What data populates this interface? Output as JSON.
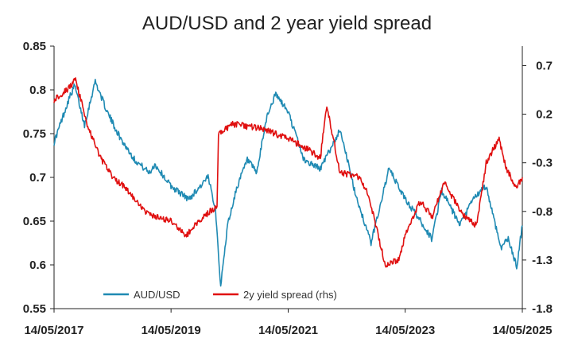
{
  "chart_data": {
    "type": "line",
    "title": "AUD/USD and 2 year yield spread",
    "xlabel": "",
    "ylabel": "",
    "x_ticks": [
      "14/05/2017",
      "14/05/2019",
      "14/05/2021",
      "14/05/2023",
      "14/05/2025"
    ],
    "x_range": [
      "2017-05-14",
      "2025-05-14"
    ],
    "y_left": {
      "min": 0.55,
      "max": 0.85,
      "ticks": [
        "0.85",
        "0.8",
        "0.75",
        "0.7",
        "0.65",
        "0.6",
        "0.55"
      ]
    },
    "y_right": {
      "min": -1.8,
      "max": 0.9,
      "ticks": [
        "0.7",
        "0.2",
        "-0.3",
        "-0.8",
        "-1.3",
        "-1.8"
      ]
    },
    "grid": false,
    "legend_position": "bottom",
    "series": [
      {
        "name": "AUD/USD",
        "axis": "left",
        "color": "#1f8ab3",
        "points": [
          [
            "2017-05-14",
            0.74
          ],
          [
            "2017-08-15",
            0.79
          ],
          [
            "2017-09-20",
            0.805
          ],
          [
            "2017-11-20",
            0.76
          ],
          [
            "2018-01-26",
            0.81
          ],
          [
            "2018-04-10",
            0.775
          ],
          [
            "2018-07-01",
            0.745
          ],
          [
            "2018-09-30",
            0.72
          ],
          [
            "2018-12-31",
            0.705
          ],
          [
            "2019-02-01",
            0.715
          ],
          [
            "2019-05-14",
            0.69
          ],
          [
            "2019-09-01",
            0.675
          ],
          [
            "2019-12-31",
            0.7
          ],
          [
            "2020-02-15",
            0.665
          ],
          [
            "2020-03-19",
            0.575
          ],
          [
            "2020-04-30",
            0.645
          ],
          [
            "2020-06-30",
            0.69
          ],
          [
            "2020-09-01",
            0.72
          ],
          [
            "2020-10-30",
            0.705
          ],
          [
            "2021-01-01",
            0.77
          ],
          [
            "2021-02-25",
            0.795
          ],
          [
            "2021-05-14",
            0.775
          ],
          [
            "2021-08-20",
            0.72
          ],
          [
            "2021-12-01",
            0.71
          ],
          [
            "2022-04-05",
            0.755
          ],
          [
            "2022-07-01",
            0.685
          ],
          [
            "2022-10-13",
            0.625
          ],
          [
            "2023-02-02",
            0.71
          ],
          [
            "2023-05-14",
            0.675
          ],
          [
            "2023-08-01",
            0.655
          ],
          [
            "2023-10-26",
            0.63
          ],
          [
            "2023-12-28",
            0.685
          ],
          [
            "2024-04-20",
            0.645
          ],
          [
            "2024-07-10",
            0.675
          ],
          [
            "2024-09-30",
            0.69
          ],
          [
            "2024-12-31",
            0.62
          ],
          [
            "2025-02-15",
            0.63
          ],
          [
            "2025-04-09",
            0.598
          ],
          [
            "2025-05-14",
            0.645
          ]
        ]
      },
      {
        "name": "2y yield spread (rhs)",
        "axis": "right",
        "color": "#e01010",
        "points": [
          [
            "2017-05-14",
            0.35
          ],
          [
            "2017-08-01",
            0.45
          ],
          [
            "2017-09-25",
            0.55
          ],
          [
            "2017-12-15",
            0.05
          ],
          [
            "2018-03-01",
            -0.25
          ],
          [
            "2018-05-15",
            -0.45
          ],
          [
            "2018-08-01",
            -0.55
          ],
          [
            "2018-11-01",
            -0.75
          ],
          [
            "2019-01-15",
            -0.85
          ],
          [
            "2019-05-14",
            -0.9
          ],
          [
            "2019-08-15",
            -1.05
          ],
          [
            "2019-12-01",
            -0.85
          ],
          [
            "2020-02-25",
            -0.75
          ],
          [
            "2020-03-05",
            0.0
          ],
          [
            "2020-06-01",
            0.1
          ],
          [
            "2020-12-01",
            0.05
          ],
          [
            "2021-05-14",
            -0.05
          ],
          [
            "2021-09-01",
            -0.15
          ],
          [
            "2021-12-01",
            -0.25
          ],
          [
            "2022-01-10",
            0.3
          ],
          [
            "2022-04-01",
            -0.4
          ],
          [
            "2022-08-01",
            -0.45
          ],
          [
            "2022-10-01",
            -0.65
          ],
          [
            "2023-01-10",
            -1.35
          ],
          [
            "2023-04-01",
            -1.3
          ],
          [
            "2023-05-14",
            -1.05
          ],
          [
            "2023-08-15",
            -0.7
          ],
          [
            "2023-11-01",
            -0.85
          ],
          [
            "2024-01-10",
            -0.5
          ],
          [
            "2024-05-14",
            -0.85
          ],
          [
            "2024-08-01",
            -0.95
          ],
          [
            "2024-10-01",
            -0.3
          ],
          [
            "2024-12-20",
            -0.05
          ],
          [
            "2025-02-01",
            -0.35
          ],
          [
            "2025-04-05",
            -0.55
          ],
          [
            "2025-05-14",
            -0.45
          ]
        ]
      }
    ]
  }
}
